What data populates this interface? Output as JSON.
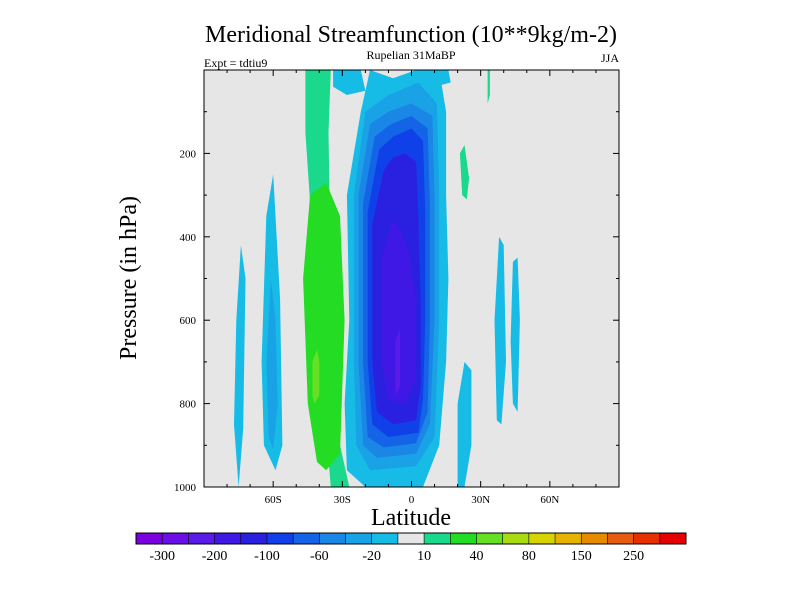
{
  "chart_data": {
    "type": "heatmap",
    "title": "Meridional Streamfunction (10**9kg/m-2)",
    "subtitle_left": "Expt = tdtiu9",
    "subtitle_center": "Rupelian  31MaBP",
    "subtitle_right": "JJA",
    "xlabel": "Latitude",
    "ylabel": "Pressure (in hPa)",
    "xlim": [
      -90,
      90
    ],
    "ylim": [
      1000,
      0
    ],
    "x_ticks": [
      {
        "value": -60,
        "label": "60S"
      },
      {
        "value": -30,
        "label": "30S"
      },
      {
        "value": 0,
        "label": "0"
      },
      {
        "value": 30,
        "label": "30N"
      },
      {
        "value": 60,
        "label": "60N"
      }
    ],
    "y_ticks": [
      {
        "value": 200,
        "label": "200"
      },
      {
        "value": 400,
        "label": "400"
      },
      {
        "value": 600,
        "label": "600"
      },
      {
        "value": 800,
        "label": "800"
      },
      {
        "value": 1000,
        "label": "1000"
      }
    ],
    "background_color": "#e6e6e6",
    "colorbar": {
      "colors": [
        "#7a00e0",
        "#6a10e6",
        "#5a1ae8",
        "#4018e6",
        "#2a20e0",
        "#1040e8",
        "#1464e8",
        "#1a86e6",
        "#1aa2e6",
        "#16bce6",
        "#e6e6e6",
        "#1ad88c",
        "#24dc24",
        "#66e024",
        "#a8dc10",
        "#d8d400",
        "#e6b400",
        "#e68a00",
        "#e65c10",
        "#e63000",
        "#e60000"
      ],
      "labels": [
        {
          "after_index": 0,
          "text": "-300"
        },
        {
          "after_index": 2,
          "text": "-200"
        },
        {
          "after_index": 4,
          "text": "-100"
        },
        {
          "after_index": 6,
          "text": "-60"
        },
        {
          "after_index": 8,
          "text": "-20"
        },
        {
          "after_index": 10,
          "text": "10"
        },
        {
          "after_index": 12,
          "text": "40"
        },
        {
          "after_index": 14,
          "text": "80"
        },
        {
          "after_index": 16,
          "text": "150"
        },
        {
          "after_index": 18,
          "text": "250"
        }
      ]
    },
    "contours": [
      {
        "name": "green-band-light-sh",
        "color": "#1ad88c",
        "points": [
          [
            -35,
            1000
          ],
          [
            -27,
            1000
          ],
          [
            -33,
            850
          ],
          [
            -35,
            500
          ],
          [
            -36,
            150
          ],
          [
            -35,
            0
          ],
          [
            -46,
            0
          ],
          [
            -46,
            150
          ],
          [
            -43,
            400
          ],
          [
            -38,
            800
          ]
        ]
      },
      {
        "name": "green-band-dark-sh",
        "color": "#24dc24",
        "points": [
          [
            -37,
            960
          ],
          [
            -31,
            920
          ],
          [
            -29,
            600
          ],
          [
            -31,
            350
          ],
          [
            -37,
            270
          ],
          [
            -44,
            300
          ],
          [
            -47,
            500
          ],
          [
            -45,
            800
          ],
          [
            -41,
            940
          ]
        ]
      },
      {
        "name": "lime-spot-sh",
        "color": "#66e024",
        "points": [
          [
            -42,
            800
          ],
          [
            -40,
            780
          ],
          [
            -40,
            700
          ],
          [
            -41,
            670
          ],
          [
            -43,
            700
          ],
          [
            -43,
            780
          ]
        ]
      },
      {
        "name": "cyan-patch-sh-far",
        "color": "#16bce6",
        "points": [
          [
            -75,
            1000
          ],
          [
            -73,
            860
          ],
          [
            -72,
            500
          ],
          [
            -74,
            420
          ],
          [
            -76,
            600
          ],
          [
            -77,
            850
          ]
        ]
      },
      {
        "name": "cyan-patch-sh-mid",
        "color": "#16bce6",
        "points": [
          [
            -59,
            960
          ],
          [
            -56,
            900
          ],
          [
            -57,
            550
          ],
          [
            -60,
            250
          ],
          [
            -63,
            350
          ],
          [
            -65,
            700
          ],
          [
            -64,
            900
          ]
        ]
      },
      {
        "name": "blue-patch-sh-mid",
        "color": "#1aa2e6",
        "points": [
          [
            -60,
            910
          ],
          [
            -58,
            800
          ],
          [
            -59,
            600
          ],
          [
            -61,
            500
          ],
          [
            -63,
            700
          ],
          [
            -62,
            880
          ]
        ]
      },
      {
        "name": "cyan-cell-nh-upper",
        "color": "#16bce6",
        "points": [
          [
            -18,
            0
          ],
          [
            -22,
            100
          ],
          [
            -28,
            300
          ],
          [
            -27,
            600
          ],
          [
            -29,
            800
          ],
          [
            -28,
            960
          ],
          [
            -20,
            1000
          ],
          [
            5,
            1000
          ],
          [
            12,
            900
          ],
          [
            15,
            700
          ],
          [
            16,
            500
          ],
          [
            15,
            300
          ],
          [
            15,
            100
          ],
          [
            12,
            0
          ],
          [
            2,
            0
          ],
          [
            -8,
            20
          ]
        ]
      },
      {
        "name": "blue-cell-outer",
        "color": "#1aa2e6",
        "points": [
          [
            -20,
            100
          ],
          [
            -25,
            300
          ],
          [
            -25,
            700
          ],
          [
            -24,
            900
          ],
          [
            -18,
            960
          ],
          [
            2,
            950
          ],
          [
            10,
            880
          ],
          [
            12,
            600
          ],
          [
            12,
            300
          ],
          [
            11,
            80
          ],
          [
            3,
            30
          ],
          [
            -10,
            60
          ]
        ]
      },
      {
        "name": "blue-cell-2",
        "color": "#1a86e6",
        "points": [
          [
            -18,
            130
          ],
          [
            -23,
            300
          ],
          [
            -23,
            700
          ],
          [
            -21,
            900
          ],
          [
            -15,
            930
          ],
          [
            2,
            920
          ],
          [
            8,
            850
          ],
          [
            10,
            600
          ],
          [
            10,
            300
          ],
          [
            9,
            110
          ],
          [
            0,
            80
          ],
          [
            -10,
            100
          ]
        ]
      },
      {
        "name": "blue-cell-3",
        "color": "#1464e8",
        "points": [
          [
            -16,
            160
          ],
          [
            -21,
            320
          ],
          [
            -21,
            700
          ],
          [
            -19,
            880
          ],
          [
            -12,
            905
          ],
          [
            2,
            895
          ],
          [
            7,
            820
          ],
          [
            8,
            600
          ],
          [
            8,
            320
          ],
          [
            7,
            140
          ],
          [
            0,
            110
          ],
          [
            -9,
            130
          ]
        ]
      },
      {
        "name": "blue-cell-4",
        "color": "#1040e8",
        "points": [
          [
            -14,
            190
          ],
          [
            -19,
            340
          ],
          [
            -19,
            700
          ],
          [
            -17,
            850
          ],
          [
            -10,
            880
          ],
          [
            3,
            870
          ],
          [
            5,
            790
          ],
          [
            6,
            600
          ],
          [
            6,
            340
          ],
          [
            5,
            170
          ],
          [
            0,
            140
          ],
          [
            -8,
            160
          ]
        ]
      },
      {
        "name": "blue-cell-5",
        "color": "#2a20e0",
        "points": [
          [
            -12,
            240
          ],
          [
            -17,
            370
          ],
          [
            -17,
            700
          ],
          [
            -15,
            820
          ],
          [
            -8,
            850
          ],
          [
            2,
            840
          ],
          [
            4,
            760
          ],
          [
            4,
            560
          ],
          [
            3,
            360
          ],
          [
            2,
            220
          ],
          [
            -3,
            200
          ],
          [
            -8,
            210
          ]
        ]
      },
      {
        "name": "purple-cell-core",
        "color": "#4018e6",
        "points": [
          [
            -8,
            360
          ],
          [
            -13,
            450
          ],
          [
            -13,
            700
          ],
          [
            -10,
            790
          ],
          [
            -3,
            800
          ],
          [
            2,
            740
          ],
          [
            2,
            550
          ],
          [
            -1,
            440
          ],
          [
            -5,
            380
          ]
        ]
      },
      {
        "name": "violet-cell-center",
        "color": "#5a1ae8",
        "points": [
          [
            -7,
            650
          ],
          [
            -5,
            620
          ],
          [
            -5,
            760
          ],
          [
            -7,
            780
          ]
        ]
      },
      {
        "name": "green-thin-nh-top",
        "color": "#1ad88c",
        "points": [
          [
            33,
            0
          ],
          [
            34,
            0
          ],
          [
            34,
            60
          ],
          [
            33,
            80
          ]
        ]
      },
      {
        "name": "green-thin-nh-upper",
        "color": "#1ad88c",
        "points": [
          [
            21,
            200
          ],
          [
            23,
            180
          ],
          [
            25,
            260
          ],
          [
            24,
            310
          ],
          [
            22,
            300
          ]
        ]
      },
      {
        "name": "green-nh-lower",
        "color": "#1ad88c",
        "points": [
          [
            20,
            930
          ],
          [
            22,
            960
          ],
          [
            25,
            900
          ],
          [
            24,
            780
          ],
          [
            22,
            760
          ],
          [
            21,
            850
          ]
        ]
      },
      {
        "name": "lime-nh-lower",
        "color": "#66e024",
        "points": [
          [
            22,
            920
          ],
          [
            23,
            910
          ],
          [
            24,
            860
          ],
          [
            23,
            840
          ],
          [
            22,
            870
          ]
        ]
      },
      {
        "name": "cyan-patch-nh-lower",
        "color": "#16bce6",
        "points": [
          [
            20,
            1000
          ],
          [
            23,
            1000
          ],
          [
            26,
            900
          ],
          [
            26,
            720
          ],
          [
            23,
            700
          ],
          [
            20,
            800
          ]
        ]
      },
      {
        "name": "cyan-patch-nh-mid",
        "color": "#16bce6",
        "points": [
          [
            37,
            840
          ],
          [
            39,
            850
          ],
          [
            41,
            700
          ],
          [
            40,
            420
          ],
          [
            38,
            400
          ],
          [
            36,
            600
          ]
        ]
      },
      {
        "name": "cyan-patch-nh-far",
        "color": "#16bce6",
        "points": [
          [
            44,
            800
          ],
          [
            46,
            820
          ],
          [
            47,
            600
          ],
          [
            46,
            450
          ],
          [
            44,
            460
          ],
          [
            43,
            650
          ]
        ]
      },
      {
        "name": "cyan-patch-top-sh",
        "color": "#16bce6",
        "points": [
          [
            -34,
            0
          ],
          [
            -22,
            0
          ],
          [
            -20,
            50
          ],
          [
            -28,
            60
          ],
          [
            -34,
            40
          ]
        ]
      },
      {
        "name": "cyan-patch-top-nh",
        "color": "#16bce6",
        "points": [
          [
            8,
            0
          ],
          [
            16,
            0
          ],
          [
            17,
            30
          ],
          [
            10,
            40
          ]
        ]
      }
    ]
  }
}
